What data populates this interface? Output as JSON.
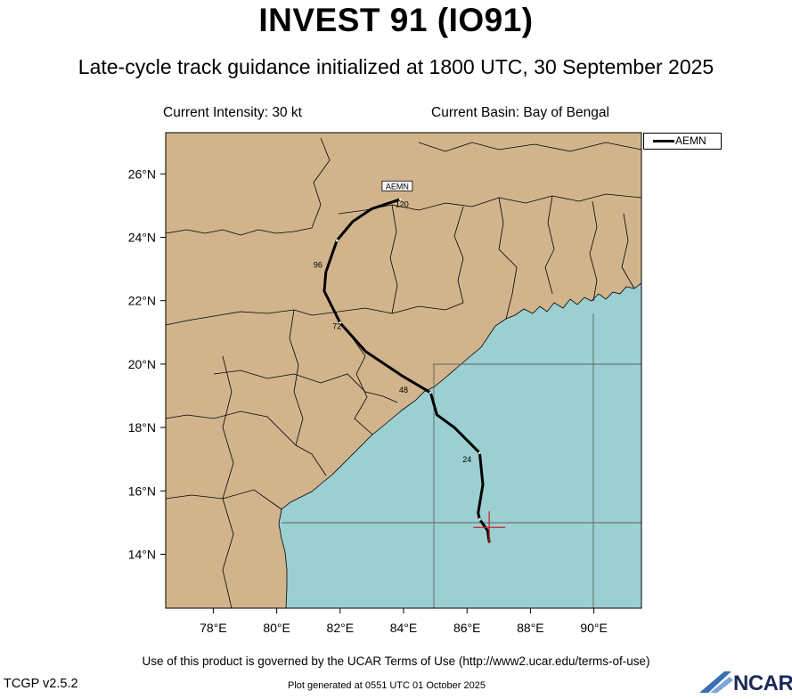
{
  "header": {
    "title": "INVEST 91 (IO91)",
    "subtitle": "Late-cycle track guidance initialized at 1800 UTC, 30 September 2025",
    "current_intensity": "Current Intensity: 30 kt",
    "current_basin": "Current Basin: Bay of Bengal"
  },
  "legend": {
    "label": "AEMN"
  },
  "map": {
    "lon_range": [
      76.5,
      91.5
    ],
    "lat_range": [
      12.3,
      27.3
    ],
    "lon_ticks": [
      "78°E",
      "80°E",
      "82°E",
      "84°E",
      "86°E",
      "88°E",
      "90°E"
    ],
    "lat_ticks": [
      "14°N",
      "16°N",
      "18°N",
      "20°N",
      "22°N",
      "24°N",
      "26°N"
    ],
    "colors": {
      "land": "#d2b48c",
      "ocean": "#9bcfd2",
      "track": "#000000",
      "current_position": "#c8282a",
      "grid": "#606060"
    }
  },
  "chart_data": {
    "type": "map_track",
    "model": "AEMN",
    "current_position": {
      "lon": 86.7,
      "lat": 14.85
    },
    "track": [
      {
        "lon": 86.7,
        "lat": 14.4
      },
      {
        "lon": 86.65,
        "lat": 14.75
      },
      {
        "lon": 86.4,
        "lat": 15.1
      },
      {
        "lon": 86.35,
        "lat": 15.3
      },
      {
        "lon": 86.5,
        "lat": 16.2
      },
      {
        "lon": 86.4,
        "lat": 17.2
      },
      {
        "lon": 85.6,
        "lat": 18.0
      },
      {
        "lon": 85.05,
        "lat": 18.4
      },
      {
        "lon": 84.85,
        "lat": 19.1
      },
      {
        "lon": 84.0,
        "lat": 19.6
      },
      {
        "lon": 82.8,
        "lat": 20.4
      },
      {
        "lon": 82.0,
        "lat": 21.3
      },
      {
        "lon": 81.5,
        "lat": 22.3
      },
      {
        "lon": 81.55,
        "lat": 22.9
      },
      {
        "lon": 81.9,
        "lat": 23.9
      },
      {
        "lon": 82.4,
        "lat": 24.5
      },
      {
        "lon": 83.0,
        "lat": 24.9
      },
      {
        "lon": 83.9,
        "lat": 25.2
      }
    ],
    "tau_labels": [
      {
        "text": "24",
        "lon": 86.0,
        "lat": 16.9
      },
      {
        "text": "48",
        "lon": 84.0,
        "lat": 19.1
      },
      {
        "text": "72",
        "lon": 81.9,
        "lat": 21.1
      },
      {
        "text": "96",
        "lon": 81.3,
        "lat": 23.05
      },
      {
        "text": "120",
        "lon": 83.95,
        "lat": 24.95
      }
    ],
    "end_label": {
      "text": "AEMN",
      "lon": 83.8,
      "lat": 25.55
    }
  },
  "footer": {
    "terms": "Use of this product is governed by the UCAR Terms of Use (http://www2.ucar.edu/terms-of-use)",
    "version": "TCGP v2.5.2",
    "generated": "Plot generated at 0551 UTC   01 October 2025",
    "logo_text": "NCAR"
  }
}
